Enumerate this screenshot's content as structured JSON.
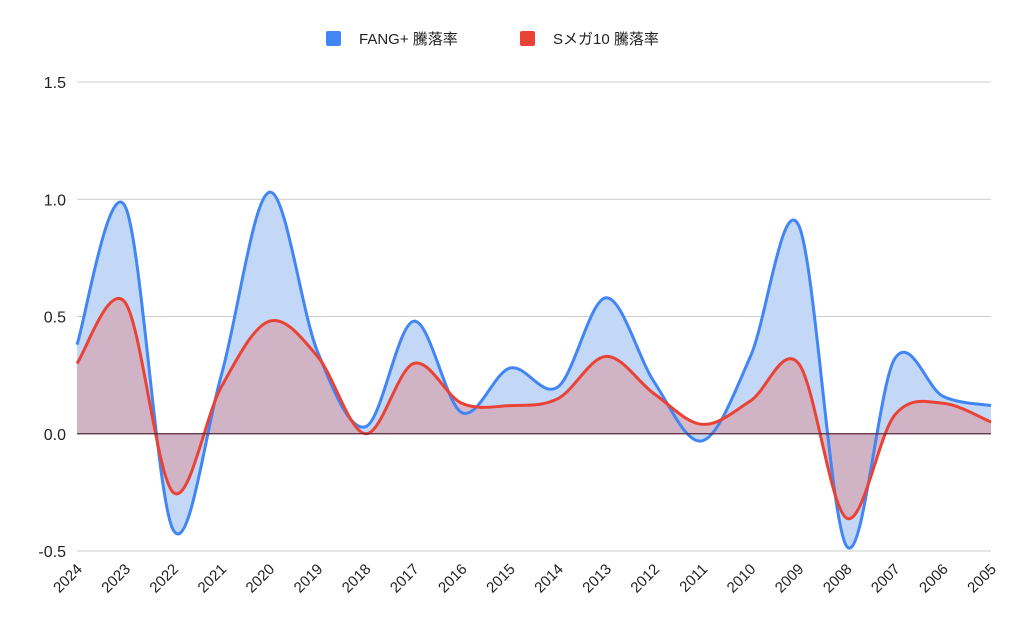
{
  "chart_data": {
    "type": "area",
    "categories": [
      "2024",
      "2023",
      "2022",
      "2021",
      "2020",
      "2019",
      "2018",
      "2017",
      "2016",
      "2015",
      "2014",
      "2013",
      "2012",
      "2011",
      "2010",
      "2009",
      "2008",
      "2007",
      "2006",
      "2005"
    ],
    "series": [
      {
        "name": "FANG+ 騰落率",
        "color": "#4285f4",
        "fill": "#c3d7f6",
        "values": [
          0.38,
          0.97,
          -0.41,
          0.25,
          1.03,
          0.35,
          0.03,
          0.48,
          0.09,
          0.28,
          0.2,
          0.58,
          0.22,
          -0.03,
          0.33,
          0.89,
          -0.48,
          0.32,
          0.16,
          0.12
        ]
      },
      {
        "name": "Sメガ10 騰落率",
        "color": "#ea4335",
        "fill": "#d2aebd",
        "values": [
          0.3,
          0.56,
          -0.25,
          0.2,
          0.48,
          0.33,
          0.0,
          0.3,
          0.13,
          0.12,
          0.15,
          0.33,
          0.17,
          0.04,
          0.14,
          0.3,
          -0.36,
          0.08,
          0.13,
          0.05
        ]
      }
    ],
    "yticks": [
      "1.5",
      "1.0",
      "0.5",
      "0.0",
      "-0.5"
    ],
    "ylim": [
      -0.5,
      1.5
    ],
    "grid": true,
    "legend_position": "top"
  }
}
